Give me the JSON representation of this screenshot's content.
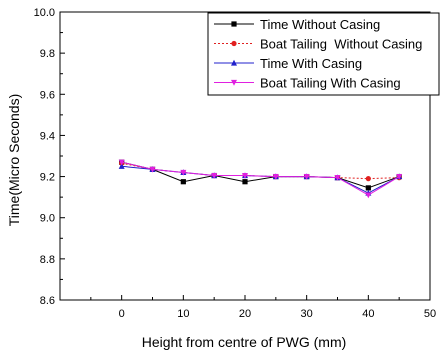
{
  "chart_data": {
    "type": "line",
    "title": "",
    "xlabel": "Height from centre of PWG (mm)",
    "ylabel": "Time(Micro Seconds)",
    "xlim": [
      -10,
      50
    ],
    "ylim": [
      8.6,
      10.0
    ],
    "xticks": [
      0,
      10,
      20,
      30,
      40,
      50
    ],
    "yticks": [
      8.6,
      8.8,
      9.0,
      9.2,
      9.4,
      9.6,
      9.8,
      10.0
    ],
    "x": [
      0,
      5,
      10,
      15,
      20,
      25,
      30,
      35,
      40,
      45
    ],
    "legend_position": "top-right",
    "series": [
      {
        "name": "Time Without Casing",
        "values": [
          9.27,
          9.235,
          9.175,
          9.205,
          9.175,
          9.2,
          9.2,
          9.195,
          9.145,
          9.2
        ],
        "color": "#000000",
        "marker": "square",
        "line": "solid"
      },
      {
        "name": "Boat Tailing  Without Casing",
        "values": [
          9.265,
          9.235,
          9.22,
          9.205,
          9.205,
          9.2,
          9.2,
          9.195,
          9.19,
          9.195
        ],
        "color": "#e02020",
        "marker": "circle",
        "line": "dotted"
      },
      {
        "name": "Time With Casing",
        "values": [
          9.25,
          9.235,
          9.22,
          9.205,
          9.205,
          9.2,
          9.2,
          9.195,
          9.12,
          9.2
        ],
        "color": "#2020cc",
        "marker": "triangle",
        "line": "solid"
      },
      {
        "name": "Boat Tailing With Casing",
        "values": [
          9.27,
          9.235,
          9.22,
          9.205,
          9.205,
          9.2,
          9.2,
          9.195,
          9.11,
          9.2
        ],
        "color": "#e020e0",
        "marker": "triangle-down",
        "line": "solid"
      }
    ]
  }
}
